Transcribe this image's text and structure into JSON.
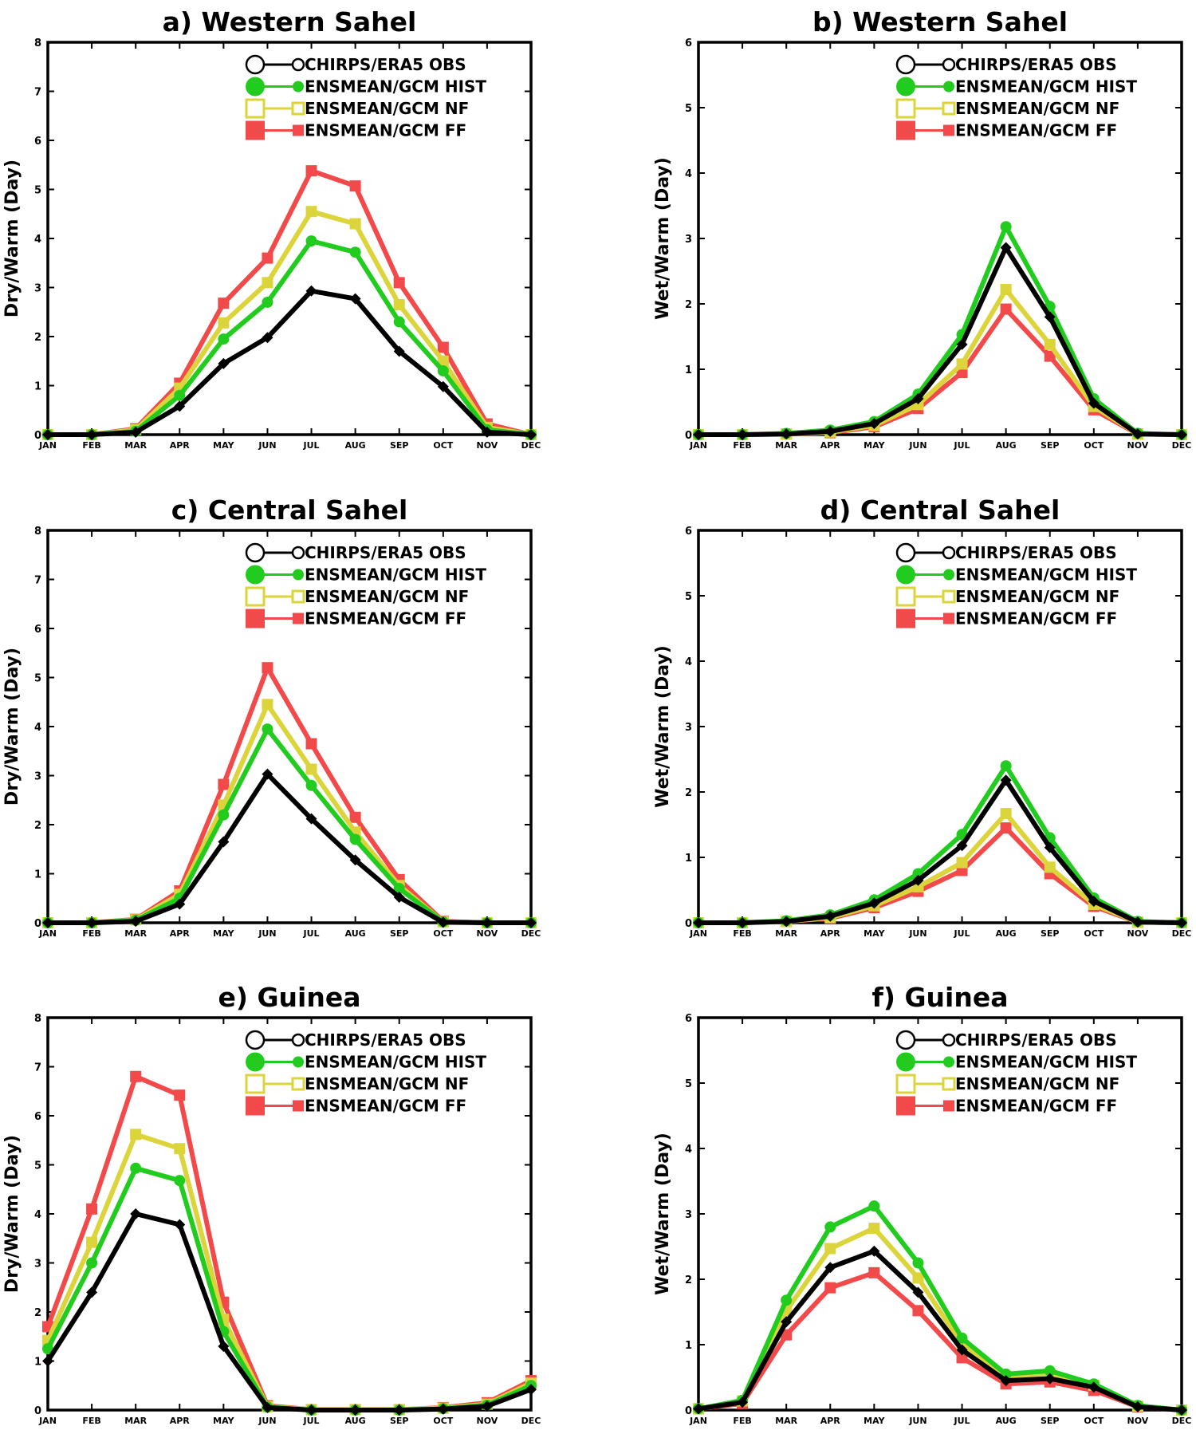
{
  "figure": {
    "description": ""
  },
  "chart_data": [
    {
      "type": "line",
      "title": "a)  Western Sahel",
      "ylabel": "Dry/Warm (Day)",
      "xlabel": "",
      "ylim": [
        0,
        8
      ],
      "yticks": [
        "0",
        "1",
        "2",
        "3",
        "4",
        "5",
        "6",
        "7",
        "8"
      ],
      "categories": [
        "JAN",
        "FEB",
        "MAR",
        "APR",
        "MAY",
        "JUN",
        "JUL",
        "AUG",
        "SEP",
        "OCT",
        "NOV",
        "DEC"
      ],
      "legend_position": "top-right",
      "series": [
        {
          "name": "CHIRPS/ERA5 OBS",
          "color": "#000000",
          "marker": "diamond",
          "values": [
            0,
            0,
            0.05,
            0.58,
            1.45,
            1.98,
            2.93,
            2.77,
            1.7,
            0.98,
            0.05,
            0
          ]
        },
        {
          "name": "ENSMEAN/GCM HIST",
          "color": "#22cc1e",
          "marker": "circle",
          "values": [
            0,
            0,
            0.07,
            0.8,
            1.95,
            2.7,
            3.95,
            3.72,
            2.3,
            1.3,
            0.1,
            0
          ]
        },
        {
          "name": "ENSMEAN/GCM NF",
          "color": "#dcd43b",
          "marker": "square",
          "values": [
            0,
            0,
            0.1,
            0.95,
            2.28,
            3.1,
            4.55,
            4.3,
            2.65,
            1.5,
            0.15,
            0
          ]
        },
        {
          "name": "ENSMEAN/GCM FF",
          "color": "#f24a4a",
          "marker": "square",
          "values": [
            0,
            0,
            0.12,
            1.05,
            2.68,
            3.6,
            5.38,
            5.07,
            3.1,
            1.78,
            0.22,
            0
          ]
        }
      ]
    },
    {
      "type": "line",
      "title": "b)  Western Sahel",
      "ylabel": "Wet/Warm (Day)",
      "xlabel": "",
      "ylim": [
        0,
        6
      ],
      "yticks": [
        "0",
        "1",
        "2",
        "3",
        "4",
        "5",
        "6"
      ],
      "categories": [
        "JAN",
        "FEB",
        "MAR",
        "APR",
        "MAY",
        "JUN",
        "JUL",
        "AUG",
        "SEP",
        "OCT",
        "NOV",
        "DEC"
      ],
      "legend_position": "top-right",
      "series": [
        {
          "name": "CHIRPS/ERA5 OBS",
          "color": "#000000",
          "marker": "diamond",
          "values": [
            0,
            0,
            0.01,
            0.05,
            0.17,
            0.55,
            1.38,
            2.86,
            1.8,
            0.48,
            0.01,
            0
          ]
        },
        {
          "name": "ENSMEAN/GCM HIST",
          "color": "#22cc1e",
          "marker": "circle",
          "values": [
            0,
            0,
            0.02,
            0.07,
            0.2,
            0.62,
            1.53,
            3.18,
            1.96,
            0.55,
            0.02,
            0
          ]
        },
        {
          "name": "ENSMEAN/GCM NF",
          "color": "#dcd43b",
          "marker": "square",
          "values": [
            0,
            0,
            0.01,
            0.04,
            0.14,
            0.46,
            1.08,
            2.22,
            1.38,
            0.43,
            0.01,
            0
          ]
        },
        {
          "name": "ENSMEAN/GCM FF",
          "color": "#f24a4a",
          "marker": "square",
          "values": [
            0,
            0,
            0.01,
            0.03,
            0.12,
            0.4,
            0.95,
            1.92,
            1.2,
            0.38,
            0.01,
            0
          ]
        }
      ]
    },
    {
      "type": "line",
      "title": "c)  Central Sahel",
      "ylabel": "Dry/Warm (Day)",
      "xlabel": "",
      "ylim": [
        0,
        8
      ],
      "yticks": [
        "0",
        "1",
        "2",
        "3",
        "4",
        "5",
        "6",
        "7",
        "8"
      ],
      "categories": [
        "JAN",
        "FEB",
        "MAR",
        "APR",
        "MAY",
        "JUN",
        "JUL",
        "AUG",
        "SEP",
        "OCT",
        "NOV",
        "DEC"
      ],
      "legend_position": "top-right",
      "series": [
        {
          "name": "CHIRPS/ERA5 OBS",
          "color": "#000000",
          "marker": "diamond",
          "values": [
            0,
            0,
            0.03,
            0.38,
            1.65,
            3.03,
            2.12,
            1.28,
            0.52,
            0.01,
            0,
            0
          ]
        },
        {
          "name": "ENSMEAN/GCM HIST",
          "color": "#22cc1e",
          "marker": "circle",
          "values": [
            0,
            0,
            0.05,
            0.5,
            2.2,
            3.95,
            2.8,
            1.7,
            0.7,
            0.02,
            0,
            0
          ]
        },
        {
          "name": "ENSMEAN/GCM NF",
          "color": "#dcd43b",
          "marker": "square",
          "values": [
            0,
            0,
            0.06,
            0.58,
            2.4,
            4.45,
            3.13,
            1.85,
            0.76,
            0.02,
            0,
            0
          ]
        },
        {
          "name": "ENSMEAN/GCM FF",
          "color": "#f24a4a",
          "marker": "square",
          "values": [
            0,
            0,
            0.07,
            0.65,
            2.82,
            5.2,
            3.65,
            2.15,
            0.88,
            0.03,
            0,
            0
          ]
        }
      ]
    },
    {
      "type": "line",
      "title": "d)  Central Sahel",
      "ylabel": "Wet/Warm (Day)",
      "xlabel": "",
      "ylim": [
        0,
        6
      ],
      "yticks": [
        "0",
        "1",
        "2",
        "3",
        "4",
        "5",
        "6"
      ],
      "categories": [
        "JAN",
        "FEB",
        "MAR",
        "APR",
        "MAY",
        "JUN",
        "JUL",
        "AUG",
        "SEP",
        "OCT",
        "NOV",
        "DEC"
      ],
      "legend_position": "top-right",
      "series": [
        {
          "name": "CHIRPS/ERA5 OBS",
          "color": "#000000",
          "marker": "diamond",
          "values": [
            0,
            0,
            0.02,
            0.1,
            0.3,
            0.65,
            1.18,
            2.18,
            1.15,
            0.33,
            0.01,
            0
          ]
        },
        {
          "name": "ENSMEAN/GCM HIST",
          "color": "#22cc1e",
          "marker": "circle",
          "values": [
            0,
            0,
            0.03,
            0.12,
            0.35,
            0.75,
            1.35,
            2.4,
            1.3,
            0.38,
            0.02,
            0
          ]
        },
        {
          "name": "ENSMEAN/GCM NF",
          "color": "#dcd43b",
          "marker": "square",
          "values": [
            0,
            0,
            0.02,
            0.08,
            0.26,
            0.55,
            0.92,
            1.67,
            0.85,
            0.28,
            0.01,
            0
          ]
        },
        {
          "name": "ENSMEAN/GCM FF",
          "color": "#f24a4a",
          "marker": "square",
          "values": [
            0,
            0,
            0.02,
            0.07,
            0.23,
            0.48,
            0.8,
            1.45,
            0.75,
            0.25,
            0.01,
            0
          ]
        }
      ]
    },
    {
      "type": "line",
      "title": "e)  Guinea",
      "ylabel": "Dry/Warm (Day)",
      "xlabel": "",
      "ylim": [
        0,
        8
      ],
      "yticks": [
        "0",
        "1",
        "2",
        "3",
        "4",
        "5",
        "6",
        "7",
        "8"
      ],
      "categories": [
        "JAN",
        "FEB",
        "MAR",
        "APR",
        "MAY",
        "JUN",
        "JUL",
        "AUG",
        "SEP",
        "OCT",
        "NOV",
        "DEC"
      ],
      "legend_position": "top-right",
      "series": [
        {
          "name": "CHIRPS/ERA5 OBS",
          "color": "#000000",
          "marker": "diamond",
          "values": [
            1.0,
            2.4,
            4.0,
            3.78,
            1.3,
            0.05,
            0,
            0,
            0,
            0.02,
            0.08,
            0.42
          ]
        },
        {
          "name": "ENSMEAN/GCM HIST",
          "color": "#22cc1e",
          "marker": "circle",
          "values": [
            1.25,
            3.0,
            4.93,
            4.68,
            1.6,
            0.06,
            0,
            0,
            0,
            0.03,
            0.1,
            0.5
          ]
        },
        {
          "name": "ENSMEAN/GCM NF",
          "color": "#dcd43b",
          "marker": "square",
          "values": [
            1.42,
            3.42,
            5.62,
            5.33,
            1.85,
            0.07,
            0.01,
            0.01,
            0.01,
            0.04,
            0.12,
            0.55
          ]
        },
        {
          "name": "ENSMEAN/GCM FF",
          "color": "#f24a4a",
          "marker": "square",
          "values": [
            1.7,
            4.1,
            6.8,
            6.42,
            2.2,
            0.09,
            0.01,
            0.01,
            0.01,
            0.05,
            0.15,
            0.6
          ]
        }
      ]
    },
    {
      "type": "line",
      "title": "f)  Guinea",
      "ylabel": "Wet/Warm (Day)",
      "xlabel": "",
      "ylim": [
        0,
        6
      ],
      "yticks": [
        "0",
        "1",
        "2",
        "3",
        "4",
        "5",
        "6"
      ],
      "categories": [
        "JAN",
        "FEB",
        "MAR",
        "APR",
        "MAY",
        "JUN",
        "JUL",
        "AUG",
        "SEP",
        "OCT",
        "NOV",
        "DEC"
      ],
      "legend_position": "top-right",
      "series": [
        {
          "name": "CHIRPS/ERA5 OBS",
          "color": "#000000",
          "marker": "diamond",
          "values": [
            0.02,
            0.12,
            1.35,
            2.18,
            2.43,
            1.8,
            0.92,
            0.45,
            0.48,
            0.35,
            0.05,
            0
          ]
        },
        {
          "name": "ENSMEAN/GCM HIST",
          "color": "#22cc1e",
          "marker": "circle",
          "values": [
            0.02,
            0.15,
            1.68,
            2.8,
            3.12,
            2.25,
            1.1,
            0.55,
            0.6,
            0.4,
            0.07,
            0
          ]
        },
        {
          "name": "ENSMEAN/GCM NF",
          "color": "#dcd43b",
          "marker": "square",
          "values": [
            0.02,
            0.14,
            1.52,
            2.47,
            2.78,
            2.02,
            1.0,
            0.52,
            0.55,
            0.38,
            0.06,
            0
          ]
        },
        {
          "name": "ENSMEAN/GCM FF",
          "color": "#f24a4a",
          "marker": "square",
          "values": [
            0.02,
            0.1,
            1.15,
            1.87,
            2.1,
            1.52,
            0.8,
            0.4,
            0.43,
            0.3,
            0.05,
            0
          ]
        }
      ]
    }
  ]
}
